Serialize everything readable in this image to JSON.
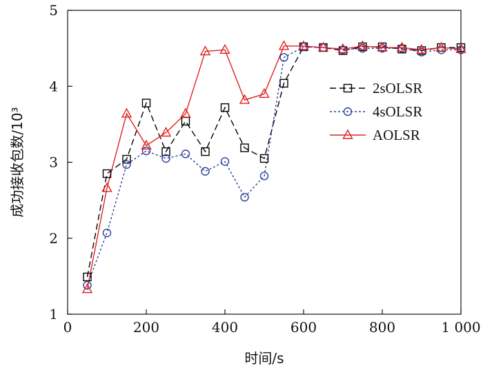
{
  "chart_data": {
    "type": "line",
    "title": "",
    "xlabel": "时间/s",
    "ylabel": "成功接收包数/10³",
    "xlim": [
      0,
      1000
    ],
    "ylim": [
      1,
      5
    ],
    "x_ticks": [
      0,
      200,
      400,
      600,
      800,
      1000
    ],
    "x_tick_labels": [
      "0",
      "200",
      "400",
      "600",
      "800",
      "1 000"
    ],
    "y_ticks": [
      1,
      2,
      3,
      4,
      5
    ],
    "y_tick_labels": [
      "1",
      "2",
      "3",
      "4",
      "5"
    ],
    "x": [
      50,
      100,
      150,
      200,
      250,
      300,
      350,
      400,
      450,
      500,
      550,
      600,
      650,
      700,
      750,
      800,
      850,
      900,
      950,
      1000
    ],
    "legend_position": "right",
    "series": [
      {
        "name": "2sOLSR",
        "color": "#000000",
        "marker": "square",
        "line_style": "dashed",
        "values": [
          1.49,
          2.85,
          3.04,
          3.78,
          3.14,
          3.54,
          3.14,
          3.72,
          3.19,
          3.05,
          4.04,
          4.52,
          4.51,
          4.47,
          4.52,
          4.52,
          4.49,
          4.47,
          4.51,
          4.51
        ]
      },
      {
        "name": "4sOLSR",
        "color": "#2a3f9a",
        "marker": "circle",
        "line_style": "dotted",
        "values": [
          1.38,
          2.07,
          2.97,
          3.15,
          3.05,
          3.11,
          2.88,
          3.01,
          2.54,
          2.82,
          4.38,
          4.52,
          4.51,
          4.48,
          4.5,
          4.5,
          4.5,
          4.45,
          4.48,
          4.48
        ]
      },
      {
        "name": "AOLSR",
        "color": "#e02020",
        "marker": "triangle",
        "line_style": "solid",
        "values": [
          1.33,
          2.66,
          3.64,
          3.22,
          3.39,
          3.64,
          4.46,
          4.48,
          3.82,
          3.9,
          4.53,
          4.53,
          4.51,
          4.49,
          4.53,
          4.51,
          4.51,
          4.48,
          4.51,
          4.49
        ]
      }
    ]
  }
}
